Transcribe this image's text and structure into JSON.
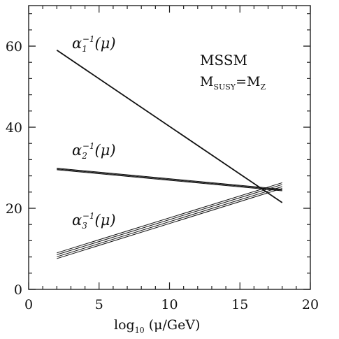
{
  "chart_data": {
    "type": "line",
    "xlim": [
      0,
      20
    ],
    "ylim": [
      0,
      70
    ],
    "x_ticks": [
      0,
      5,
      10,
      15,
      20
    ],
    "y_ticks": [
      0,
      20,
      40,
      60
    ],
    "x_minor_step": 1,
    "y_minor_step": 4,
    "grid": false,
    "xlabel": {
      "prefix": "log",
      "sub": "10",
      "rest": " (μ/GeV)"
    },
    "annotations": {
      "model": "MSSM",
      "scale_main": "M",
      "scale_sub": "SUSY",
      "scale_eq": "=M",
      "scale_sub2": "Z"
    },
    "series": [
      {
        "label": {
          "alpha": "α",
          "sub": "1",
          "sup": "−1",
          "arg": "(μ)"
        },
        "x": [
          2,
          18
        ],
        "y": [
          59,
          21.4
        ],
        "band_offsets": [
          0
        ]
      },
      {
        "label": {
          "alpha": "α",
          "sub": "2",
          "sup": "−1",
          "arg": "(μ)"
        },
        "x": [
          2,
          18
        ],
        "y": [
          29.7,
          24.5
        ],
        "band_offsets": [
          -0.2,
          0,
          0.2
        ]
      },
      {
        "label": {
          "alpha": "α",
          "sub": "3",
          "sup": "−1",
          "arg": "(μ)"
        },
        "x": [
          2,
          18
        ],
        "y": [
          8.3,
          25.6
        ],
        "band_offsets": [
          -0.7,
          -0.25,
          0.25,
          0.7
        ]
      }
    ],
    "colors": {
      "line": "#111111",
      "axis": "#222222"
    }
  }
}
